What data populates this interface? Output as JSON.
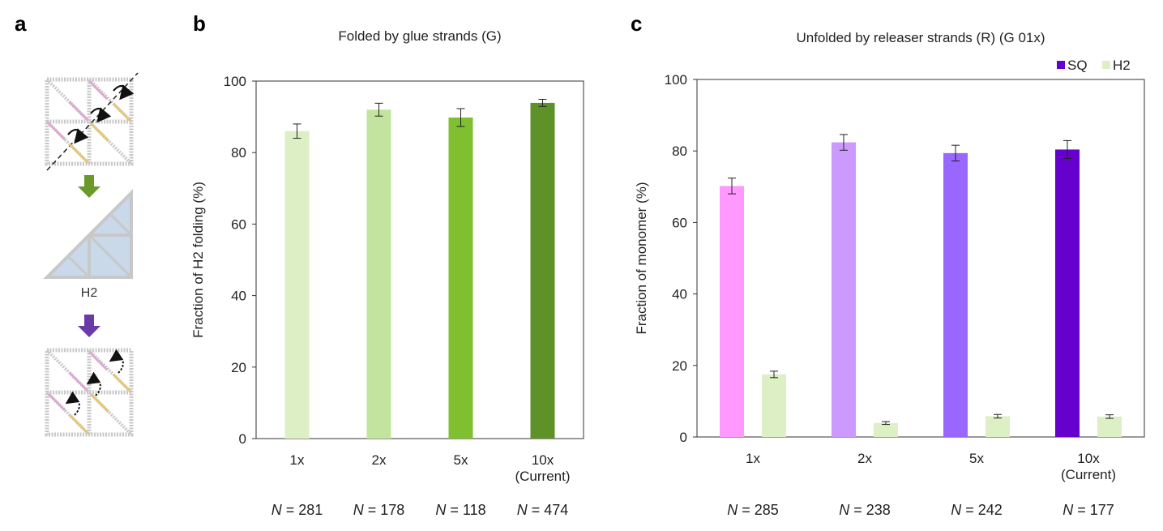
{
  "panels": {
    "a": {
      "letter": "a",
      "shape_label": "H2",
      "colors": {
        "green_arrow": "#6a9a2a",
        "purple_arrow": "#6b3aa8",
        "triangle_fill": "#c9d9ea",
        "pink": "#e0a8d4",
        "yellow": "#e6c77a"
      }
    },
    "b": {
      "letter": "b"
    },
    "c": {
      "letter": "c"
    }
  },
  "chart_data": [
    {
      "type": "bar",
      "panel": "b",
      "title": "Folded by glue strands (G)",
      "ylabel": "Fraction of H2 folding (%)",
      "xlabel": "",
      "ylim": [
        0,
        100
      ],
      "yticks": [
        0,
        20,
        40,
        60,
        80,
        100
      ],
      "categories": [
        [
          "1x"
        ],
        [
          "2x"
        ],
        [
          "5x"
        ],
        [
          "10x",
          "(Current)"
        ]
      ],
      "n_prefix": "N",
      "n_values": [
        "= 281",
        "= 178",
        "= 118",
        "= 474"
      ],
      "grid": false,
      "series": [
        {
          "values": [
            86,
            92,
            89.8,
            93.9
          ],
          "errors": [
            2.0,
            1.8,
            2.5,
            1.0
          ],
          "colors": [
            "#dcefc5",
            "#c3e49e",
            "#7fbf30",
            "#5e9128"
          ]
        }
      ]
    },
    {
      "type": "bar",
      "panel": "c",
      "title": "Unfolded by releaser strands (R) (G 01x)",
      "ylabel": "Fraction of monomer (%)",
      "xlabel": "",
      "ylim": [
        0,
        100
      ],
      "yticks": [
        0,
        20,
        40,
        60,
        80,
        100
      ],
      "categories": [
        [
          "1x"
        ],
        [
          "2x"
        ],
        [
          "5x"
        ],
        [
          "10x",
          "(Current)"
        ]
      ],
      "n_prefix": "N",
      "n_values": [
        "= 285",
        "= 238",
        "= 242",
        "= 177"
      ],
      "grid": false,
      "legend": {
        "placement": "top-right",
        "entries": [
          {
            "name": "SQ",
            "color": "#6600cc"
          },
          {
            "name": "H2",
            "color": "#dcefc5"
          }
        ]
      },
      "series": [
        {
          "name": "SQ",
          "values": [
            70.2,
            82.4,
            79.4,
            80.4
          ],
          "errors": [
            2.2,
            2.2,
            2.2,
            2.5
          ],
          "colors": [
            "#ff99ff",
            "#cc99ff",
            "#9966ff",
            "#6600cc"
          ]
        },
        {
          "name": "H2",
          "values": [
            17.5,
            3.9,
            5.8,
            5.7
          ],
          "errors": [
            0.9,
            0.4,
            0.5,
            0.5
          ],
          "colors": [
            "#dcefc5",
            "#dcefc5",
            "#dcefc5",
            "#dcefc5"
          ]
        }
      ]
    }
  ]
}
